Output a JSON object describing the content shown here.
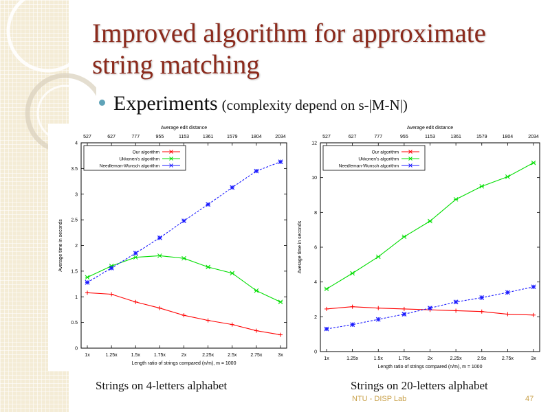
{
  "slide": {
    "title_line1": "Improved algorithm for approximate",
    "title_line2": "string matching",
    "bullet_main": "Experiments",
    "bullet_sub": "(complexity depend on s-|M-N|)",
    "caption_left": "Strings on 4-letters alphabet",
    "caption_right": "Strings on 20-letters alphabet",
    "footer_left": "NTU - DISP Lab",
    "page_number": "47"
  },
  "colors": {
    "title": "#8b2a1c",
    "bullet": "#5fa3b8",
    "footer": "#c9a14a",
    "series": [
      "#ff0000",
      "#00dd00",
      "#1a1aff"
    ]
  },
  "chart_data": [
    {
      "type": "line",
      "title": "Average edit distance",
      "top_tick_labels": [
        "527",
        "627",
        "777",
        "955",
        "1153",
        "1361",
        "1579",
        "1804",
        "2034"
      ],
      "categories": [
        "1x",
        "1.25x",
        "1.5x",
        "1.75x",
        "2x",
        "2.25x",
        "2.5x",
        "2.75x",
        "3x"
      ],
      "xlabel": "Length ratio of strings compared (n/m), m = 1000",
      "ylabel": "Average time in seconds",
      "ylim": [
        0,
        4
      ],
      "yticks": [
        "0",
        "0.5",
        "1",
        "1.5",
        "2",
        "2.5",
        "3",
        "3.5",
        "4"
      ],
      "legend_position": "top-left",
      "grid": false,
      "series": [
        {
          "name": "Our algorithm",
          "values": [
            1.08,
            1.05,
            0.9,
            0.78,
            0.64,
            0.54,
            0.46,
            0.34,
            0.26
          ]
        },
        {
          "name": "Ukkonen's algorithm",
          "values": [
            1.38,
            1.6,
            1.77,
            1.8,
            1.75,
            1.58,
            1.46,
            1.12,
            0.9
          ]
        },
        {
          "name": "Needleman-Wunsch algorithm",
          "values": [
            1.28,
            1.56,
            1.85,
            2.15,
            2.48,
            2.8,
            3.13,
            3.45,
            3.63
          ]
        }
      ]
    },
    {
      "type": "line",
      "title": "Average edit distance",
      "top_tick_labels": [
        "527",
        "627",
        "777",
        "955",
        "1153",
        "1361",
        "1579",
        "1804",
        "2034"
      ],
      "categories": [
        "1x",
        "1.25x",
        "1.5x",
        "1.75x",
        "2x",
        "2.25x",
        "2.5x",
        "2.75x",
        "3x"
      ],
      "xlabel": "Length ratio of strings compared (n/m), m = 1000",
      "ylabel": "Average time in seconds",
      "ylim": [
        0,
        12
      ],
      "yticks": [
        "0",
        "2",
        "4",
        "6",
        "8",
        "10",
        "12"
      ],
      "legend_position": "top-left",
      "grid": false,
      "series": [
        {
          "name": "Our algorithm",
          "values": [
            2.45,
            2.58,
            2.5,
            2.45,
            2.4,
            2.35,
            2.3,
            2.15,
            2.1
          ]
        },
        {
          "name": "Ukkonen's algorithm",
          "values": [
            3.6,
            4.5,
            5.45,
            6.6,
            7.5,
            8.75,
            9.5,
            10.05,
            10.85
          ]
        },
        {
          "name": "Needleman-Wunsch algorithm",
          "values": [
            1.3,
            1.55,
            1.85,
            2.15,
            2.5,
            2.85,
            3.1,
            3.4,
            3.72
          ]
        }
      ]
    }
  ]
}
